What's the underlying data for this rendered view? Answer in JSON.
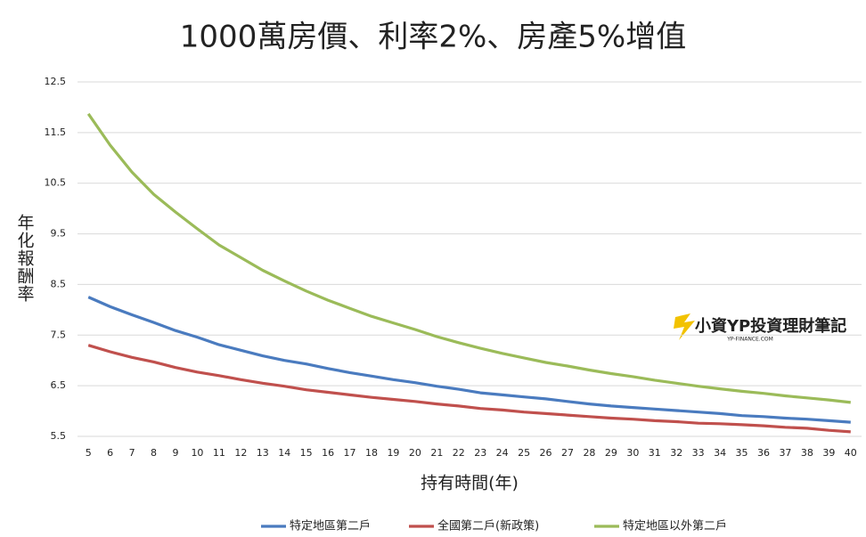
{
  "chart_data": {
    "type": "line",
    "title": "1000萬房價、利率2%、房產5%增值",
    "y_label": "年化報酬率",
    "x_label": "持有時間(年)",
    "watermark": "小資YP投資理財筆記",
    "watermark_sub": "YP-FINANCE.COM",
    "categories": [
      "5",
      "6",
      "7",
      "8",
      "9",
      "10",
      "11",
      "12",
      "13",
      "14",
      "15",
      "16",
      "17",
      "18",
      "19",
      "20",
      "21",
      "22",
      "23",
      "24",
      "25",
      "26",
      "27",
      "28",
      "29",
      "30",
      "31",
      "32",
      "33",
      "34",
      "35",
      "36",
      "37",
      "38",
      "39",
      "40"
    ],
    "series": [
      {
        "name": "特定地區第二戶",
        "color": "#4a7bbf",
        "values": [
          8.25,
          8.06,
          7.9,
          7.75,
          7.59,
          7.46,
          7.31,
          7.2,
          7.09,
          7.0,
          6.93,
          6.84,
          6.76,
          6.69,
          6.62,
          6.56,
          6.49,
          6.43,
          6.36,
          6.32,
          6.28,
          6.24,
          6.19,
          6.14,
          6.1,
          6.07,
          6.04,
          6.01,
          5.98,
          5.95,
          5.91,
          5.89,
          5.86,
          5.84,
          5.81,
          5.78
        ]
      },
      {
        "name": "全國第二戶(新政策)",
        "color": "#c0504d",
        "values": [
          7.3,
          7.17,
          7.06,
          6.97,
          6.86,
          6.77,
          6.7,
          6.62,
          6.55,
          6.49,
          6.42,
          6.37,
          6.32,
          6.27,
          6.23,
          6.19,
          6.14,
          6.1,
          6.05,
          6.02,
          5.98,
          5.95,
          5.92,
          5.89,
          5.86,
          5.84,
          5.81,
          5.79,
          5.76,
          5.75,
          5.73,
          5.71,
          5.68,
          5.66,
          5.62,
          5.59
        ]
      },
      {
        "name": "特定地區以外第二戶",
        "color": "#9bbb59",
        "values": [
          11.87,
          11.25,
          10.72,
          10.28,
          9.93,
          9.6,
          9.28,
          9.03,
          8.78,
          8.57,
          8.37,
          8.19,
          8.03,
          7.87,
          7.74,
          7.61,
          7.47,
          7.35,
          7.24,
          7.14,
          7.05,
          6.96,
          6.89,
          6.81,
          6.74,
          6.68,
          6.61,
          6.55,
          6.49,
          6.44,
          6.39,
          6.35,
          6.3,
          6.26,
          6.22,
          6.17
        ]
      }
    ],
    "ylim": [
      5.5,
      12.5
    ],
    "yticks": [
      5.5,
      6.5,
      7.5,
      8.5,
      9.5,
      10.5,
      11.5,
      12.5
    ],
    "grid": true,
    "legend": "bottom"
  }
}
